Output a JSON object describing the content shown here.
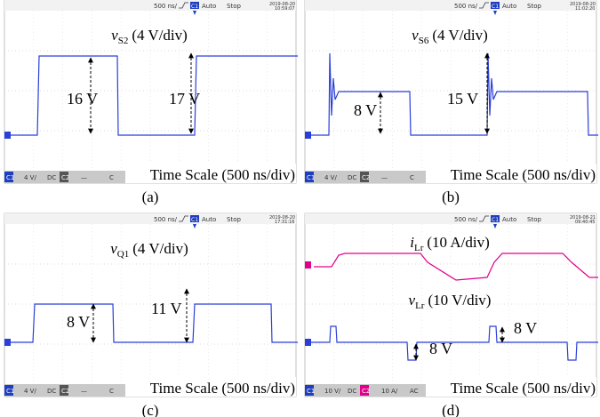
{
  "panels": [
    {
      "top_bar": {
        "timebase": "500 ns/",
        "channel": "C1",
        "mode": "Auto",
        "state": "Stop",
        "date": "2019-08-20",
        "time": "10:59:07"
      },
      "signals": [
        {
          "symbol": "v",
          "subscript": "S2",
          "scale": "(4 V/div)"
        }
      ],
      "annotations": [
        "16 V",
        "17 V"
      ],
      "time_scale": "Time Scale (500 ns/div)",
      "bottom_bar": [
        "C1",
        "4 V/",
        "DC",
        "C2",
        "—",
        "C"
      ],
      "caption": "(a)"
    },
    {
      "top_bar": {
        "timebase": "500 ns/",
        "channel": "C1",
        "mode": "Auto",
        "state": "Stop",
        "date": "2019-08-20",
        "time": "11:02:20"
      },
      "signals": [
        {
          "symbol": "v",
          "subscript": "S6",
          "scale": "(4 V/div)"
        }
      ],
      "annotations": [
        "8 V",
        "15 V"
      ],
      "time_scale": "Time Scale (500 ns/div)",
      "bottom_bar": [
        "C1",
        "4 V/",
        "DC",
        "C2",
        "—",
        "C"
      ],
      "caption": "(b)"
    },
    {
      "top_bar": {
        "timebase": "500 ns/",
        "channel": "C1",
        "mode": "Auto",
        "state": "Stop",
        "date": "2019-08-20",
        "time": "17:31:16"
      },
      "signals": [
        {
          "symbol": "v",
          "subscript": "Q1",
          "scale": "(4 V/div)"
        }
      ],
      "annotations": [
        "8 V",
        "11 V"
      ],
      "time_scale": "Time Scale (500 ns/div)",
      "bottom_bar": [
        "C1",
        "4 V/",
        "DC",
        "C2",
        "—",
        "C"
      ],
      "caption": "(c)"
    },
    {
      "top_bar": {
        "timebase": "500 ns/",
        "channel": "C1",
        "mode": "Auto",
        "state": "Stop",
        "date": "2019-08-21",
        "time": "09:40:45"
      },
      "signals": [
        {
          "symbol": "i",
          "subscript": "Lr",
          "scale": "(10 A/div)"
        },
        {
          "symbol": "v",
          "subscript": "Lr",
          "scale": "(10 V/div)"
        }
      ],
      "annotations": [
        "8 V",
        "8 V"
      ],
      "time_scale": "Time Scale (500 ns/div)",
      "bottom_bar": [
        "C1",
        "10 V/",
        "DC",
        "C2",
        "10 A/",
        "AC"
      ],
      "caption": "(d)"
    }
  ]
}
